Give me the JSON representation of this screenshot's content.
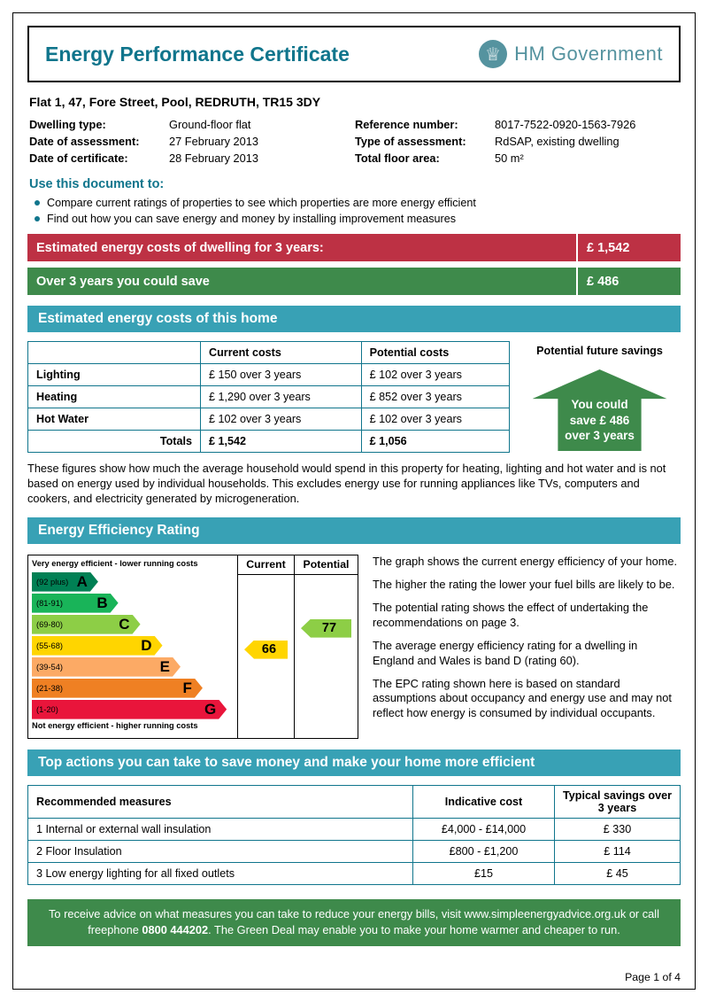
{
  "header": {
    "title": "Energy Performance Certificate",
    "logo_text": "HM Government",
    "crown_icon": "♕"
  },
  "property": {
    "address": "Flat 1, 47, Fore Street, Pool, REDRUTH, TR15 3DY",
    "dwelling_type_label": "Dwelling type:",
    "dwelling_type": "Ground-floor flat",
    "assessment_date_label": "Date of assessment:",
    "assessment_date": "27 February 2013",
    "certificate_date_label": "Date of certificate:",
    "certificate_date": "28 February 2013",
    "reference_label": "Reference number:",
    "reference": "8017-7522-0920-1563-7926",
    "assessment_type_label": "Type of assessment:",
    "assessment_type": "RdSAP, existing dwelling",
    "floor_area_label": "Total floor area:",
    "floor_area": "50 m²"
  },
  "use_document": {
    "heading": "Use this document to:",
    "bullets": [
      "Compare current ratings of properties to see which properties are more energy efficient",
      "Find out how you can save energy and money by installing improvement measures"
    ]
  },
  "banners": {
    "cost_label": "Estimated energy costs of dwelling for 3 years:",
    "cost_value": "£ 1,542",
    "save_label": "Over 3 years you could save",
    "save_value": "£ 486"
  },
  "costs": {
    "banner": "Estimated energy costs of this home",
    "header_current": "Current costs",
    "header_potential": "Potential costs",
    "header_savings": "Potential future savings",
    "rows": [
      {
        "label": "Lighting",
        "current": "£ 150 over 3 years",
        "potential": "£ 102 over 3 years"
      },
      {
        "label": "Heating",
        "current": "£ 1,290 over 3 years",
        "potential": "£ 852 over 3 years"
      },
      {
        "label": "Hot Water",
        "current": "£ 102 over 3 years",
        "potential": "£ 102 over 3 years"
      }
    ],
    "totals_label": "Totals",
    "totals_current": "£ 1,542",
    "totals_potential": "£ 1,056",
    "savings_note_line1": "You could",
    "savings_note_line2": "save £ 486",
    "savings_note_line3": "over 3 years",
    "disclaimer": "These figures show how much the average household would spend in this property for heating, lighting and hot water and is not based on energy used by individual households. This excludes energy use for running appliances like TVs, computers and cookers, and electricity generated by microgeneration."
  },
  "epc": {
    "banner": "Energy Efficiency Rating",
    "current_label": "Current",
    "potential_label": "Potential",
    "top_note": "Very energy efficient - lower running costs",
    "bottom_note": "Not energy efficient - higher running costs",
    "bands": [
      {
        "range": "(92 plus)",
        "letter": "A",
        "color": "#008054"
      },
      {
        "range": "(81-91)",
        "letter": "B",
        "color": "#19b459"
      },
      {
        "range": "(69-80)",
        "letter": "C",
        "color": "#8dce46"
      },
      {
        "range": "(55-68)",
        "letter": "D",
        "color": "#ffd500"
      },
      {
        "range": "(39-54)",
        "letter": "E",
        "color": "#fcaa65"
      },
      {
        "range": "(21-38)",
        "letter": "F",
        "color": "#ef8023"
      },
      {
        "range": "(1-20)",
        "letter": "G",
        "color": "#e9153b"
      }
    ],
    "current_rating": "66",
    "current_color": "#ffd500",
    "potential_rating": "77",
    "potential_color": "#8dce46",
    "paragraphs": [
      "The graph shows the current energy efficiency of your home.",
      "The higher the rating the lower your fuel bills are likely to be.",
      "The potential rating shows the effect of undertaking the recommendations on page 3.",
      "The average energy efficiency rating for a dwelling in England and Wales is band D (rating 60).",
      "The EPC rating shown here is based on standard assumptions about occupancy and energy use and may not reflect how energy is consumed by individual occupants."
    ]
  },
  "actions": {
    "banner": "Top actions you can take to save money and make your home more efficient",
    "header_measures": "Recommended measures",
    "header_cost": "Indicative cost",
    "header_savings": "Typical savings over 3 years",
    "rows": [
      {
        "measure": "1  Internal or external wall insulation",
        "cost": "£4,000 - £14,000",
        "savings": "£ 330"
      },
      {
        "measure": "2  Floor Insulation",
        "cost": "£800 - £1,200",
        "savings": "£ 114"
      },
      {
        "measure": "3  Low energy lighting for all fixed outlets",
        "cost": "£15",
        "savings": "£ 45"
      }
    ]
  },
  "footer": {
    "advice_before": "To receive advice on what measures you can take to reduce your energy bills, visit www.simpleenergyadvice.org.uk or call freephone ",
    "advice_bold": "0800 444202",
    "advice_after": ". The Green Deal may enable you to make your home warmer and cheaper to run.",
    "page_number": "Page 1 of 4"
  },
  "colors": {
    "teal_dark": "#10758c",
    "teal_banner": "#38a1b5",
    "red_banner": "#bd3144",
    "green_banner": "#3e8a4b"
  }
}
